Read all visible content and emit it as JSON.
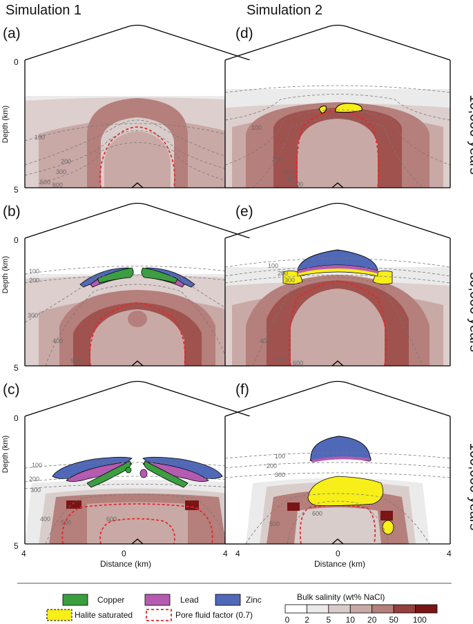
{
  "titles": {
    "col1": "Simulation 1",
    "col2": "Simulation 2"
  },
  "panels": {
    "a": "(a)",
    "b": "(b)",
    "c": "(c)",
    "d": "(d)",
    "e": "(e)",
    "f": "(f)"
  },
  "times": [
    "10,000 years",
    "50,000 years",
    "100,000 years"
  ],
  "axes": {
    "ylabel": "Depth (km)",
    "xlabel": "Distance (km)",
    "y_top": "0",
    "y_bottom": "5",
    "x_left": "4",
    "x_mid": "0",
    "x_right": "4"
  },
  "contours": {
    "c100": "100",
    "c200": "200",
    "c300": "300",
    "c400": "400",
    "c500": "500",
    "c600": "600"
  },
  "legend": {
    "copper": "Copper",
    "lead": "Lead",
    "zinc": "Zinc",
    "halite": "Halite saturated",
    "pore": "Pore fluid factor (0.7)",
    "salinity_title": "Bulk salinity (wt% NaCl)",
    "ticks": [
      "0",
      "2",
      "5",
      "10",
      "20",
      "50",
      "100"
    ]
  },
  "colors": {
    "copper": "#3aa03f",
    "lead": "#b55bb0",
    "zinc": "#5068b8",
    "halite": "#f7ef17",
    "pore": "#e8262a",
    "salinity": [
      "#ffffff",
      "#ece9e9",
      "#d9cdcb",
      "#c9a9a6",
      "#b57f7b",
      "#963f3d",
      "#7a1515"
    ]
  }
}
